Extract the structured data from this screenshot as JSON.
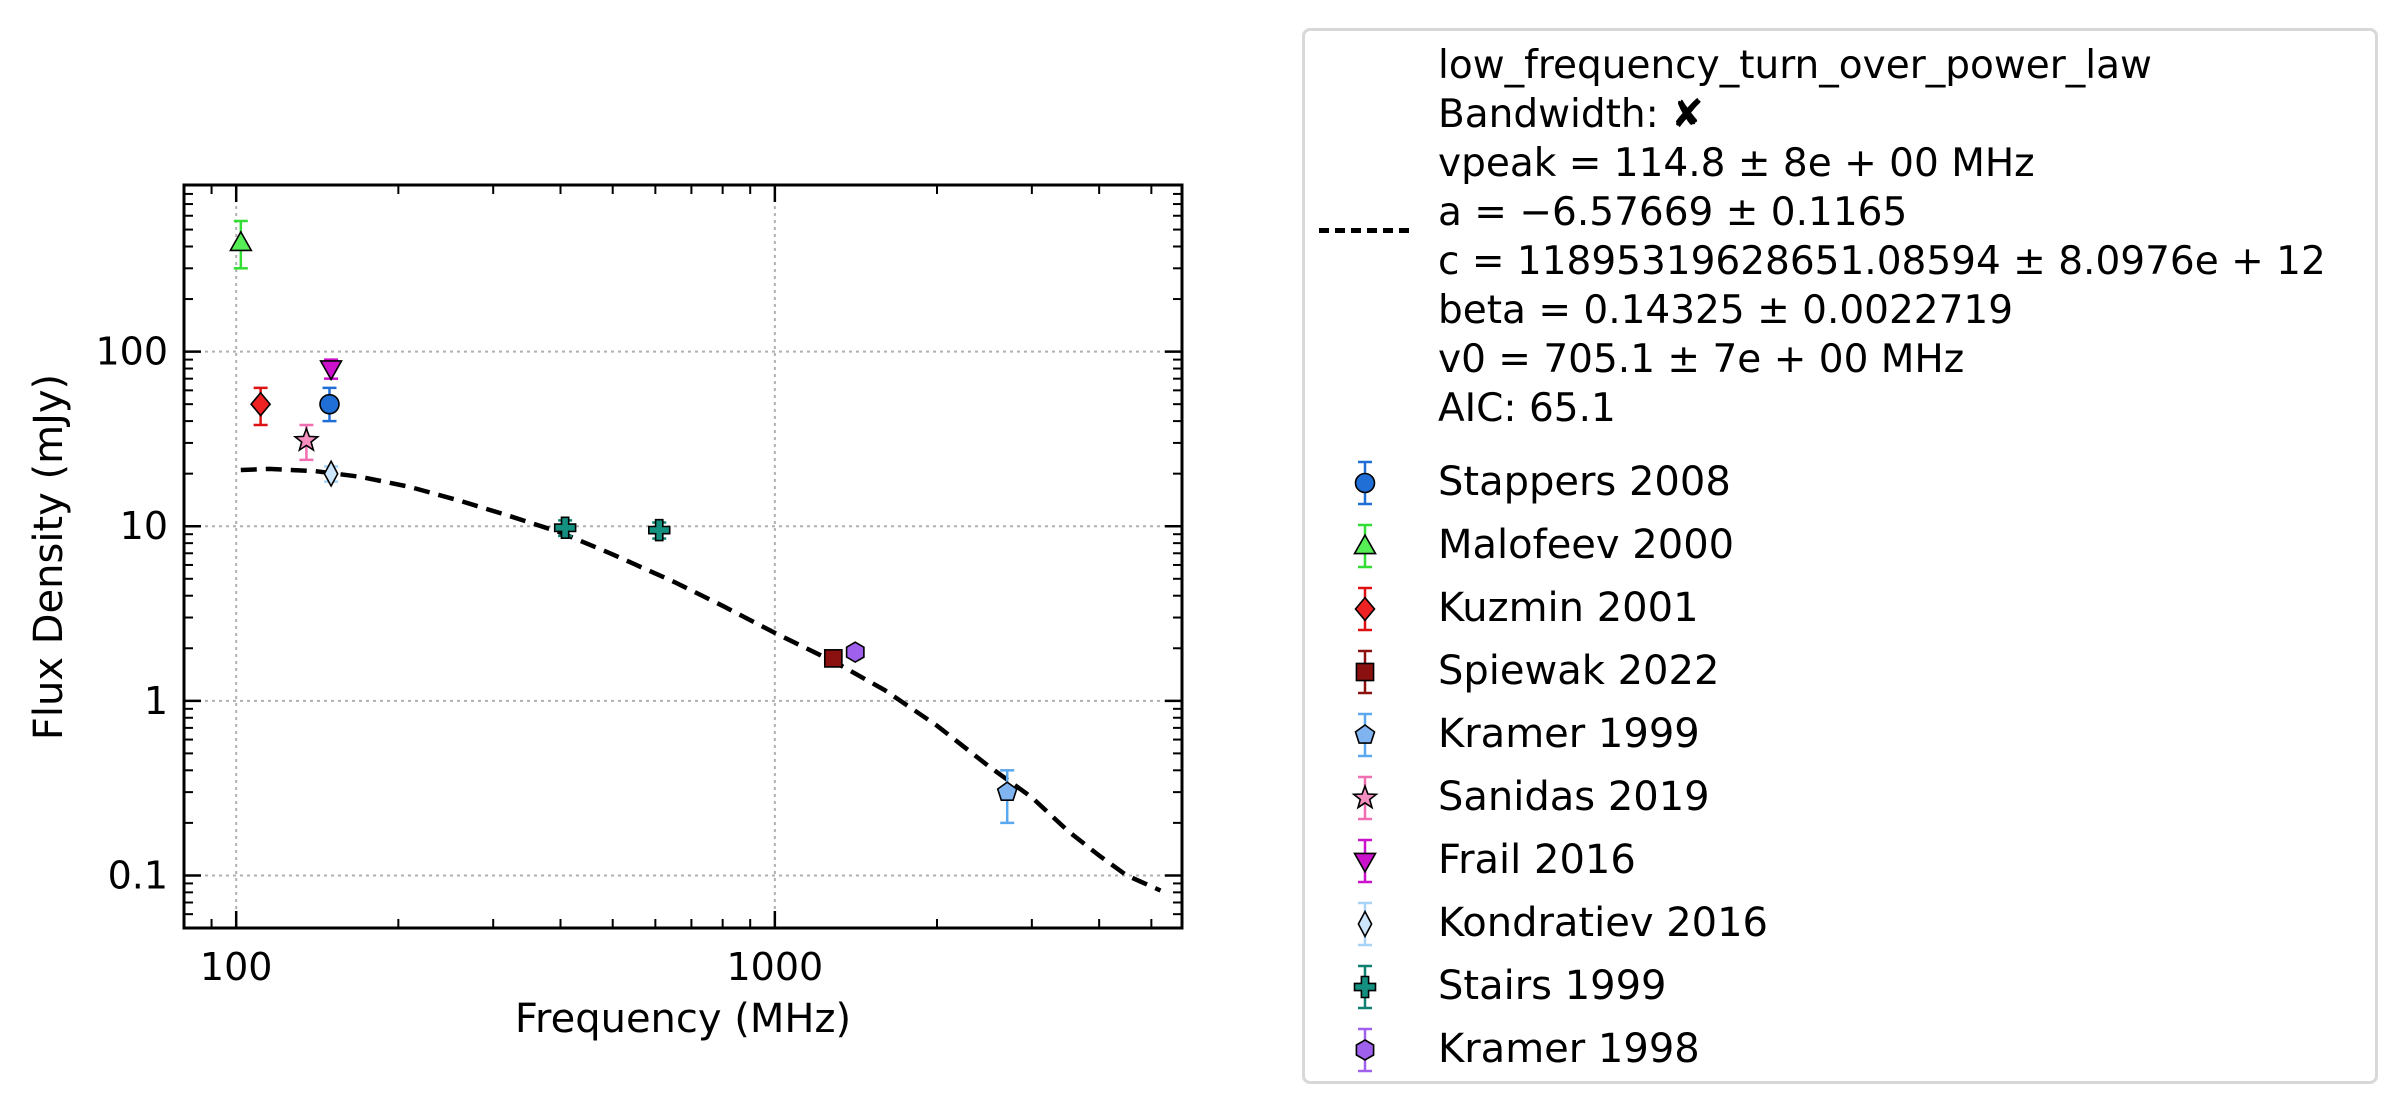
{
  "chart_data": {
    "type": "scatter",
    "xlabel": "Frequency (MHz)",
    "ylabel": "Flux Density (mJy)",
    "xscale": "log",
    "yscale": "log",
    "xlim": [
      80,
      5700
    ],
    "ylim": [
      0.05,
      900
    ],
    "x_ticks": [
      {
        "value": 100,
        "label": "100"
      },
      {
        "value": 1000,
        "label": "1000"
      }
    ],
    "y_ticks": [
      {
        "value": 0.1,
        "label": "0.1"
      },
      {
        "value": 1,
        "label": "1"
      },
      {
        "value": 10,
        "label": "10"
      },
      {
        "value": 100,
        "label": "100"
      }
    ],
    "grid": true,
    "legend_placement": "outside right",
    "fit": {
      "model": "low_frequency_turn_over_power_law",
      "lines": [
        "low_frequency_turn_over_power_law",
        "Bandwidth: ✘",
        "vpeak = 114.8 ± 8e + 00 MHz",
        "a = −6.57669 ± 0.1165",
        "c = 11895319628651.08594 ± 8.0976e + 12",
        "beta = 0.14325 ± 0.0022719",
        "v0 = 705.1 ± 7e + 00 MHz",
        "AIC: 65.1"
      ],
      "curve": [
        [
          102,
          21.0
        ],
        [
          115,
          21.3
        ],
        [
          140,
          20.7
        ],
        [
          170,
          19.2
        ],
        [
          210,
          16.8
        ],
        [
          260,
          14.0
        ],
        [
          320,
          11.5
        ],
        [
          400,
          9.2
        ],
        [
          500,
          6.9
        ],
        [
          650,
          4.8
        ],
        [
          800,
          3.5
        ],
        [
          1000,
          2.45
        ],
        [
          1300,
          1.65
        ],
        [
          1600,
          1.15
        ],
        [
          2000,
          0.72
        ],
        [
          2500,
          0.42
        ],
        [
          3000,
          0.28
        ],
        [
          3500,
          0.18
        ],
        [
          4000,
          0.13
        ],
        [
          4500,
          0.1
        ],
        [
          5200,
          0.082
        ]
      ],
      "color": "#000000"
    },
    "series": [
      {
        "name": "Stappers 2008",
        "marker": "circle",
        "color": "#1f6fd6",
        "ecolor": "#1f6fd6",
        "points": [
          {
            "x": 149,
            "y": 50,
            "ylo": 40,
            "yhi": 62
          }
        ]
      },
      {
        "name": "Malofeev 2000",
        "marker": "triangle-up",
        "color": "#55ee55",
        "ecolor": "#33dd33",
        "points": [
          {
            "x": 102,
            "y": 420,
            "ylo": 300,
            "yhi": 560
          }
        ]
      },
      {
        "name": "Kuzmin 2001",
        "marker": "diamond",
        "color": "#ee2222",
        "ecolor": "#dd1111",
        "points": [
          {
            "x": 111,
            "y": 50,
            "ylo": 38,
            "yhi": 62
          }
        ]
      },
      {
        "name": "Spiewak 2022",
        "marker": "square",
        "color": "#8b1010",
        "ecolor": "#8b1010",
        "points": [
          {
            "x": 1284,
            "y": 1.75,
            "ylo": 1.65,
            "yhi": 1.85
          }
        ]
      },
      {
        "name": "Kramer 1999",
        "marker": "pentagon",
        "color": "#7fb4f0",
        "ecolor": "#5aa8f0",
        "points": [
          {
            "x": 2700,
            "y": 0.3,
            "ylo": 0.2,
            "yhi": 0.4
          }
        ]
      },
      {
        "name": "Sanidas 2019",
        "marker": "star",
        "color": "#f58fc0",
        "ecolor": "#f06fb0",
        "points": [
          {
            "x": 135,
            "y": 31,
            "ylo": 24,
            "yhi": 38
          }
        ]
      },
      {
        "name": "Frail 2016",
        "marker": "triangle-down",
        "color": "#cc11cc",
        "ecolor": "#cc11cc",
        "points": [
          {
            "x": 150,
            "y": 80,
            "ylo": 70,
            "yhi": 90
          }
        ]
      },
      {
        "name": "Kondratiev 2016",
        "marker": "thin-diamond",
        "color": "#cde6fb",
        "ecolor": "#a8d4f8",
        "points": [
          {
            "x": 150,
            "y": 20,
            "ylo": 18,
            "yhi": 22
          }
        ]
      },
      {
        "name": "Stairs 1999",
        "marker": "plus",
        "color": "#149080",
        "ecolor": "#0f7f70",
        "points": [
          {
            "x": 408,
            "y": 9.8,
            "ylo": 8.8,
            "yhi": 10.8
          },
          {
            "x": 610,
            "y": 9.5,
            "ylo": 8.5,
            "yhi": 10.5
          }
        ]
      },
      {
        "name": "Kramer 1998",
        "marker": "hexagon",
        "color": "#a060ee",
        "ecolor": "#a060ee",
        "points": [
          {
            "x": 1410,
            "y": 1.9,
            "ylo": 1.8,
            "yhi": 2.0
          }
        ]
      }
    ]
  }
}
